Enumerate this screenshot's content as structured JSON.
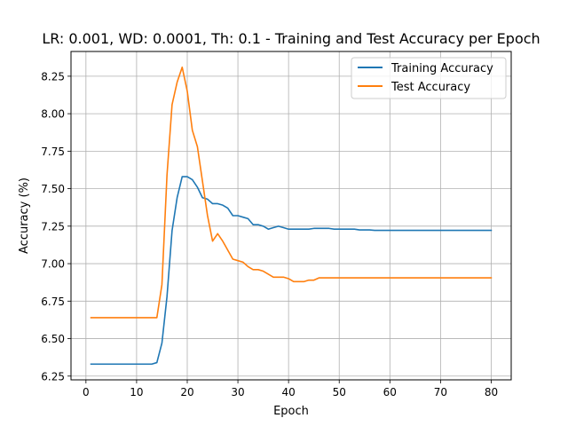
{
  "chart_data": {
    "type": "line",
    "title": "LR: 0.001, WD: 0.0001, Th: 0.1 - Training and Test Accuracy per Epoch",
    "xlabel": "Epoch",
    "ylabel": "Accuracy (%)",
    "xlim": [
      -2.95,
      83.95
    ],
    "ylim": [
      6.225,
      8.415
    ],
    "xticks": [
      0,
      10,
      20,
      30,
      40,
      50,
      60,
      70,
      80
    ],
    "xtick_labels": [
      "0",
      "10",
      "20",
      "30",
      "40",
      "50",
      "60",
      "70",
      "80"
    ],
    "yticks": [
      6.25,
      6.5,
      6.75,
      7.0,
      7.25,
      7.5,
      7.75,
      8.0,
      8.25
    ],
    "ytick_labels": [
      "6.25",
      "6.50",
      "6.75",
      "7.00",
      "7.25",
      "7.50",
      "7.75",
      "8.00",
      "8.25"
    ],
    "grid": true,
    "legend_position": "top-right",
    "x": [
      1,
      2,
      3,
      4,
      5,
      6,
      7,
      8,
      9,
      10,
      11,
      12,
      13,
      14,
      15,
      16,
      17,
      18,
      19,
      20,
      21,
      22,
      23,
      24,
      25,
      26,
      27,
      28,
      29,
      30,
      31,
      32,
      33,
      34,
      35,
      36,
      37,
      38,
      39,
      40,
      41,
      42,
      43,
      44,
      45,
      46,
      47,
      48,
      49,
      50,
      51,
      52,
      53,
      54,
      55,
      56,
      57,
      58,
      59,
      60,
      61,
      62,
      63,
      64,
      65,
      66,
      67,
      68,
      69,
      70,
      71,
      72,
      73,
      74,
      75,
      76,
      77,
      78,
      79,
      80
    ],
    "series": [
      {
        "name": "Training Accuracy",
        "color": "#1f77b4",
        "values": [
          6.33,
          6.33,
          6.33,
          6.33,
          6.33,
          6.33,
          6.33,
          6.33,
          6.33,
          6.33,
          6.33,
          6.33,
          6.33,
          6.34,
          6.47,
          6.78,
          7.22,
          7.44,
          7.58,
          7.58,
          7.56,
          7.51,
          7.44,
          7.43,
          7.4,
          7.4,
          7.39,
          7.37,
          7.32,
          7.32,
          7.31,
          7.3,
          7.26,
          7.26,
          7.25,
          7.23,
          7.24,
          7.25,
          7.24,
          7.23,
          7.23,
          7.23,
          7.23,
          7.23,
          7.235,
          7.235,
          7.235,
          7.235,
          7.23,
          7.23,
          7.23,
          7.23,
          7.23,
          7.225,
          7.225,
          7.225,
          7.222,
          7.222,
          7.222,
          7.222,
          7.222,
          7.222,
          7.222,
          7.222,
          7.222,
          7.222,
          7.222,
          7.222,
          7.222,
          7.222,
          7.222,
          7.222,
          7.222,
          7.222,
          7.222,
          7.222,
          7.222,
          7.222,
          7.222,
          7.222
        ]
      },
      {
        "name": "Test Accuracy",
        "color": "#ff7f0e",
        "values": [
          6.64,
          6.64,
          6.64,
          6.64,
          6.64,
          6.64,
          6.64,
          6.64,
          6.64,
          6.64,
          6.64,
          6.64,
          6.64,
          6.64,
          6.86,
          7.59,
          8.06,
          8.21,
          8.31,
          8.15,
          7.89,
          7.78,
          7.55,
          7.32,
          7.15,
          7.2,
          7.15,
          7.09,
          7.03,
          7.02,
          7.01,
          6.98,
          6.96,
          6.96,
          6.95,
          6.93,
          6.91,
          6.91,
          6.91,
          6.9,
          6.88,
          6.88,
          6.88,
          6.89,
          6.89,
          6.905,
          6.905,
          6.905,
          6.905,
          6.905,
          6.905,
          6.905,
          6.905,
          6.905,
          6.905,
          6.905,
          6.905,
          6.905,
          6.905,
          6.905,
          6.905,
          6.905,
          6.905,
          6.905,
          6.905,
          6.905,
          6.905,
          6.905,
          6.905,
          6.905,
          6.905,
          6.905,
          6.905,
          6.905,
          6.905,
          6.905,
          6.905,
          6.905,
          6.905,
          6.905
        ]
      }
    ]
  }
}
